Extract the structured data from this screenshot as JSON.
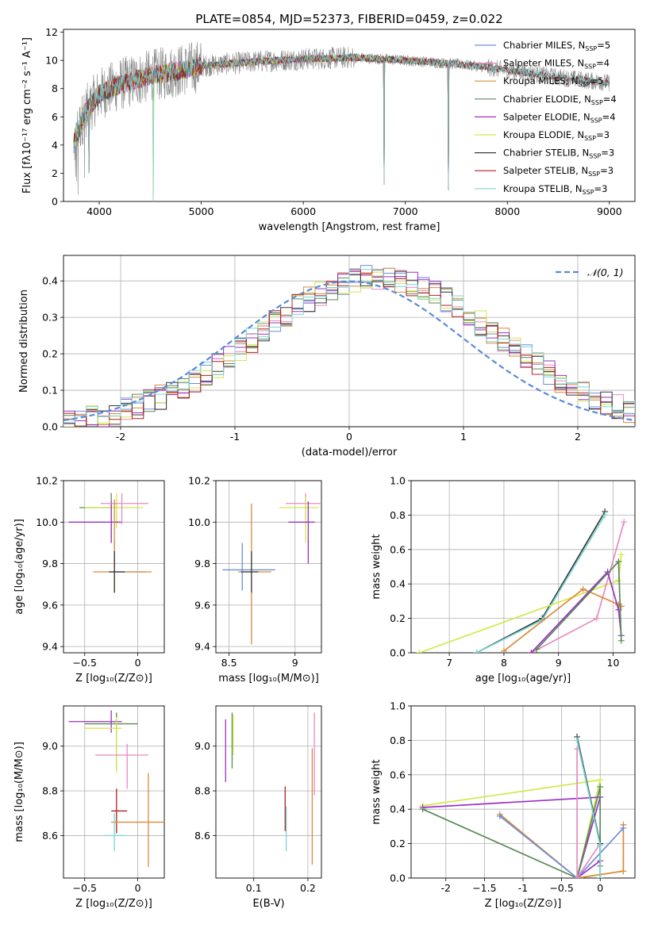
{
  "figure": {
    "title": "PLATE=0854, MJD=52373, FIBERID=0459, z=0.022"
  },
  "colors": {
    "chabrier_miles": "#6b8fd6",
    "salpeter_miles": "#e78ac3",
    "kroupa_miles": "#d98b3a",
    "chabrier_elodie": "#5a8a5a",
    "salpeter_elodie": "#9b30c8",
    "kroupa_elodie": "#d4e84a",
    "chabrier_stelib": "#3a3a3a",
    "salpeter_stelib": "#b02020",
    "kroupa_stelib": "#7ad6d6",
    "data_gray": "#888888",
    "normal_curve": "#5b8bd9"
  },
  "chart_data": [
    {
      "id": "spectrum",
      "type": "line",
      "title": "PLATE=0854, MJD=52373, FIBERID=0459, z=0.022",
      "xlabel": "wavelength [Angstrom, rest frame]",
      "ylabel": "Flux [fλ10⁻¹⁷ erg cm⁻² s⁻¹ A⁻¹]",
      "xlim": [
        3650,
        9250
      ],
      "ylim": [
        0,
        12.2
      ],
      "xticks": [
        4000,
        5000,
        6000,
        7000,
        8000,
        9000
      ],
      "yticks": [
        0,
        2,
        4,
        6,
        8,
        10,
        12
      ],
      "grid": false,
      "legend_position": "top-right",
      "legend": [
        {
          "label": "Chabrier MILES, N",
          "sub": "SSP",
          "suffix": "=5",
          "color_key": "chabrier_miles"
        },
        {
          "label": "Salpeter MILES, N",
          "sub": "SSP",
          "suffix": "=4",
          "color_key": "salpeter_miles"
        },
        {
          "label": "Kroupa MILES, N",
          "sub": "SSP",
          "suffix": "=5",
          "color_key": "kroupa_miles"
        },
        {
          "label": "Chabrier ELODIE, N",
          "sub": "SSP",
          "suffix": "=4",
          "color_key": "chabrier_elodie"
        },
        {
          "label": "Salpeter ELODIE, N",
          "sub": "SSP",
          "suffix": "=4",
          "color_key": "salpeter_elodie"
        },
        {
          "label": "Kroupa ELODIE, N",
          "sub": "SSP",
          "suffix": "=3",
          "color_key": "kroupa_elodie"
        },
        {
          "label": "Chabrier STELIB, N",
          "sub": "SSP",
          "suffix": "=3",
          "color_key": "chabrier_stelib"
        },
        {
          "label": "Salpeter STELIB, N",
          "sub": "SSP",
          "suffix": "=3",
          "color_key": "salpeter_stelib"
        },
        {
          "label": "Kroupa STELIB, N",
          "sub": "SSP",
          "suffix": "=3",
          "color_key": "kroupa_stelib"
        }
      ],
      "continuum": [
        [
          3750,
          4.0
        ],
        [
          3850,
          6.2
        ],
        [
          4000,
          7.6
        ],
        [
          4200,
          8.3
        ],
        [
          4500,
          8.9
        ],
        [
          4800,
          9.3
        ],
        [
          5000,
          9.6
        ],
        [
          5500,
          9.9
        ],
        [
          6000,
          10.1
        ],
        [
          6500,
          10.2
        ],
        [
          7000,
          10.0
        ],
        [
          7400,
          9.8
        ],
        [
          7700,
          9.6
        ],
        [
          8000,
          9.3
        ],
        [
          8500,
          8.8
        ],
        [
          9000,
          8.4
        ]
      ],
      "dips": [
        [
          4530,
          0
        ],
        [
          6790,
          1.2
        ],
        [
          7420,
          0.8
        ],
        [
          3900,
          2.0
        ]
      ]
    },
    {
      "id": "residuals",
      "type": "line",
      "xlabel": "(data-model)/error",
      "ylabel": "Normed distribution",
      "xlim": [
        -2.5,
        2.5
      ],
      "ylim": [
        0,
        0.47
      ],
      "xticks": [
        -2,
        -1,
        0,
        1,
        2
      ],
      "yticks": [
        0.0,
        0.1,
        0.2,
        0.3,
        0.4
      ],
      "grid": true,
      "legend_position": "top-right",
      "legend_label": "𝒩(0, 1)",
      "bin_width": 0.1
    },
    {
      "id": "age_vs_Z",
      "type": "scatter",
      "xlabel": "Z [log₁₀(Z/Z⊙)]",
      "ylabel": "age  [log₁₀(age/yr)]",
      "xlim": [
        -0.7,
        0.25
      ],
      "ylim": [
        9.37,
        10.2
      ],
      "xticks": [
        -0.5,
        0.0
      ],
      "yticks": [
        9.4,
        9.6,
        9.8,
        10.0,
        10.2
      ],
      "grid": true,
      "errorbars": [
        {
          "x": -0.25,
          "y": 10.07,
          "xerr": [
            0.3,
            0.0
          ],
          "yerr": [
            0.17,
            0.07
          ],
          "color_key": "chabrier_elodie"
        },
        {
          "x": -0.2,
          "y": 10.07,
          "xerr": [
            0.3,
            0.25
          ],
          "yerr": [
            0.1,
            0.07
          ],
          "color_key": "kroupa_elodie"
        },
        {
          "x": -0.25,
          "y": 10.0,
          "xerr": [
            0.4,
            0.1
          ],
          "yerr": [
            0.1,
            0.1
          ],
          "color_key": "salpeter_elodie"
        },
        {
          "x": -0.15,
          "y": 10.09,
          "xerr": [
            0.2,
            0.25
          ],
          "yerr": [
            0.1,
            0.05
          ],
          "color_key": "salpeter_miles"
        },
        {
          "x": -0.22,
          "y": 9.76,
          "xerr": [
            0.05,
            0.3
          ],
          "yerr": [
            0.1,
            0.15
          ],
          "color_key": "chabrier_miles"
        },
        {
          "x": -0.22,
          "y": 9.76,
          "xerr": [
            0.2,
            0.35
          ],
          "yerr": [
            0.1,
            0.35
          ],
          "color_key": "kroupa_miles"
        },
        {
          "x": -0.22,
          "y": 9.76,
          "xerr": [
            0.05,
            0.1
          ],
          "yerr": [
            0.1,
            0.1
          ],
          "color_key": "chabrier_stelib"
        }
      ]
    },
    {
      "id": "age_vs_mass",
      "type": "scatter",
      "xlabel": "mass [log₁₀(M/M⊙)]",
      "ylabel": "",
      "xlim": [
        8.4,
        9.2
      ],
      "ylim": [
        9.37,
        10.2
      ],
      "xticks": [
        8.5,
        9.0
      ],
      "yticks": [
        9.4,
        9.6,
        9.8,
        10.0,
        10.2
      ],
      "grid": true,
      "errorbars": [
        {
          "x": 9.08,
          "y": 10.09,
          "xerr": [
            0.15,
            0.15
          ],
          "yerr": [
            0.1,
            0.05
          ],
          "color_key": "salpeter_miles"
        },
        {
          "x": 9.08,
          "y": 10.07,
          "xerr": [
            0.2,
            0.1
          ],
          "yerr": [
            0.17,
            0.05
          ],
          "color_key": "kroupa_elodie"
        },
        {
          "x": 9.1,
          "y": 10.0,
          "xerr": [
            0.15,
            0.05
          ],
          "yerr": [
            0.2,
            0.1
          ],
          "color_key": "salpeter_elodie"
        },
        {
          "x": 8.6,
          "y": 9.77,
          "xerr": [
            0.15,
            0.25
          ],
          "yerr": [
            0.1,
            0.13
          ],
          "color_key": "chabrier_miles"
        },
        {
          "x": 8.67,
          "y": 9.76,
          "xerr": [
            0.1,
            0.15
          ],
          "yerr": [
            0.35,
            0.33
          ],
          "color_key": "kroupa_miles"
        },
        {
          "x": 8.67,
          "y": 9.76,
          "xerr": [
            0.08,
            0.05
          ],
          "yerr": [
            0.1,
            0.1
          ],
          "color_key": "chabrier_stelib"
        }
      ]
    },
    {
      "id": "mass_weight_vs_age",
      "type": "line",
      "xlabel": "age  [log₁₀(age/yr)]",
      "ylabel": "mass weight",
      "xlim": [
        6.3,
        10.4
      ],
      "ylim": [
        0.0,
        1.0
      ],
      "xticks": [
        7,
        8,
        9,
        10
      ],
      "yticks": [
        0.0,
        0.2,
        0.4,
        0.6,
        0.8,
        1.0
      ],
      "grid": true,
      "series": [
        {
          "color_key": "chabrier_stelib",
          "x": [
            7.5,
            8.7,
            9.85
          ],
          "y": [
            0.0,
            0.2,
            0.82
          ]
        },
        {
          "color_key": "kroupa_stelib",
          "x": [
            7.5,
            8.7,
            9.85
          ],
          "y": [
            0.0,
            0.19,
            0.8
          ]
        },
        {
          "color_key": "kroupa_elodie",
          "x": [
            6.45,
            10.1,
            10.15
          ],
          "y": [
            0.0,
            0.42,
            0.57
          ]
        },
        {
          "color_key": "salpeter_miles",
          "x": [
            8.5,
            9.7,
            10.2
          ],
          "y": [
            0.0,
            0.2,
            0.76
          ]
        },
        {
          "color_key": "kroupa_miles",
          "x": [
            8.0,
            9.45,
            10.1,
            10.15
          ],
          "y": [
            0.01,
            0.37,
            0.28,
            0.27
          ]
        },
        {
          "color_key": "salpeter_elodie",
          "x": [
            8.5,
            9.9,
            10.1,
            10.15
          ],
          "y": [
            0.0,
            0.47,
            0.25,
            0.1
          ]
        },
        {
          "color_key": "chabrier_elodie",
          "x": [
            8.6,
            10.1,
            10.15
          ],
          "y": [
            0.02,
            0.53,
            0.07
          ]
        }
      ]
    },
    {
      "id": "mass_vs_Z",
      "type": "scatter",
      "xlabel": "Z [log₁₀(Z/Z⊙)]",
      "ylabel": "mass [log₁₀(M/M⊙)]",
      "xlim": [
        -0.7,
        0.25
      ],
      "ylim": [
        8.41,
        9.18
      ],
      "xticks": [
        -0.5,
        0.0
      ],
      "yticks": [
        8.6,
        8.8,
        9.0
      ],
      "grid": true,
      "errorbars": [
        {
          "x": -0.25,
          "y": 9.11,
          "xerr": [
            0.4,
            0.1
          ],
          "yerr": [
            0.05,
            0.05
          ],
          "color_key": "salpeter_elodie"
        },
        {
          "x": -0.2,
          "y": 9.1,
          "xerr": [
            0.3,
            0.2
          ],
          "yerr": [
            0.2,
            0.05
          ],
          "color_key": "chabrier_elodie"
        },
        {
          "x": -0.2,
          "y": 9.08,
          "xerr": [
            0.3,
            0.05
          ],
          "yerr": [
            0.2,
            0.05
          ],
          "color_key": "kroupa_elodie"
        },
        {
          "x": -0.1,
          "y": 8.96,
          "xerr": [
            0.3,
            0.2
          ],
          "yerr": [
            0.15,
            0.05
          ],
          "color_key": "salpeter_miles"
        },
        {
          "x": -0.2,
          "y": 8.71,
          "xerr": [
            0.05,
            0.1
          ],
          "yerr": [
            0.1,
            0.1
          ],
          "color_key": "salpeter_stelib"
        },
        {
          "x": 0.1,
          "y": 8.66,
          "xerr": [
            0.35,
            0.15
          ],
          "yerr": [
            0.2,
            0.22
          ],
          "color_key": "kroupa_miles"
        },
        {
          "x": -0.22,
          "y": 8.6,
          "xerr": [
            0.1,
            0.1
          ],
          "yerr": [
            0.07,
            0.1
          ],
          "color_key": "kroupa_stelib"
        }
      ]
    },
    {
      "id": "mass_vs_ebv",
      "type": "scatter",
      "xlabel": "E(B-V)",
      "ylabel": "",
      "xlim": [
        0.03,
        0.225
      ],
      "ylim": [
        8.41,
        9.18
      ],
      "xticks": [
        0.1,
        0.2
      ],
      "yticks": [
        8.6,
        8.8,
        9.0
      ],
      "grid": true,
      "errorbars": [
        {
          "x": 0.048,
          "y": 9.0,
          "xerr": [
            0.0,
            0.0
          ],
          "yerr": [
            0.16,
            0.12
          ],
          "color_key": "salpeter_elodie"
        },
        {
          "x": 0.06,
          "y": 9.03,
          "xerr": [
            0.0,
            0.0
          ],
          "yerr": [
            0.13,
            0.12
          ],
          "color_key": "chabrier_elodie"
        },
        {
          "x": 0.062,
          "y": 9.04,
          "xerr": [
            0.0,
            0.0
          ],
          "yerr": [
            0.08,
            0.1
          ],
          "color_key": "kroupa_elodie"
        },
        {
          "x": 0.158,
          "y": 8.72,
          "xerr": [
            0.0,
            0.0
          ],
          "yerr": [
            0.1,
            0.1
          ],
          "color_key": "salpeter_stelib"
        },
        {
          "x": 0.16,
          "y": 8.63,
          "xerr": [
            0.0,
            0.0
          ],
          "yerr": [
            0.1,
            0.1
          ],
          "color_key": "kroupa_stelib"
        },
        {
          "x": 0.208,
          "y": 8.74,
          "xerr": [
            0.0,
            0.0
          ],
          "yerr": [
            0.27,
            0.25
          ],
          "color_key": "kroupa_miles"
        },
        {
          "x": 0.212,
          "y": 8.9,
          "xerr": [
            0.0,
            0.0
          ],
          "yerr": [
            0.12,
            0.25
          ],
          "color_key": "salpeter_miles"
        }
      ]
    },
    {
      "id": "mass_weight_vs_Z",
      "type": "line",
      "xlabel": "Z [log₁₀(Z/Z⊙)]",
      "ylabel": "mass weight",
      "xlim": [
        -2.45,
        0.45
      ],
      "ylim": [
        0.0,
        1.0
      ],
      "xticks": [
        -2.0,
        -1.5,
        -1.0,
        -0.5,
        0.0
      ],
      "yticks": [
        0.0,
        0.2,
        0.4,
        0.6,
        0.8,
        1.0
      ],
      "grid": true,
      "series": [
        {
          "color_key": "kroupa_elodie",
          "x": [
            -2.3,
            0.0,
            -0.3,
            0.3
          ],
          "y": [
            0.42,
            0.57,
            0.0,
            0.04
          ]
        },
        {
          "color_key": "salpeter_elodie",
          "x": [
            -2.3,
            0.0,
            -0.3,
            0.0
          ],
          "y": [
            0.41,
            0.47,
            0.0,
            0.1
          ]
        },
        {
          "color_key": "chabrier_elodie",
          "x": [
            -2.3,
            -0.3,
            0.0,
            0.0
          ],
          "y": [
            0.4,
            0.0,
            0.53,
            0.07
          ]
        },
        {
          "color_key": "kroupa_miles",
          "x": [
            -1.3,
            -0.3,
            0.3,
            0.3
          ],
          "y": [
            0.37,
            0.0,
            0.04,
            0.31
          ]
        },
        {
          "color_key": "chabrier_miles",
          "x": [
            -1.3,
            -0.3,
            0.3
          ],
          "y": [
            0.36,
            0.0,
            0.29
          ]
        },
        {
          "color_key": "salpeter_miles",
          "x": [
            -0.3,
            -0.3,
            0.0
          ],
          "y": [
            0.75,
            0.0,
            0.2
          ]
        },
        {
          "color_key": "chabrier_stelib",
          "x": [
            -0.3,
            0.0,
            0.0
          ],
          "y": [
            0.82,
            0.2,
            0.0
          ]
        },
        {
          "color_key": "kroupa_stelib",
          "x": [
            -0.3,
            0.0,
            0.0
          ],
          "y": [
            0.8,
            0.19,
            0.0
          ]
        }
      ]
    }
  ]
}
